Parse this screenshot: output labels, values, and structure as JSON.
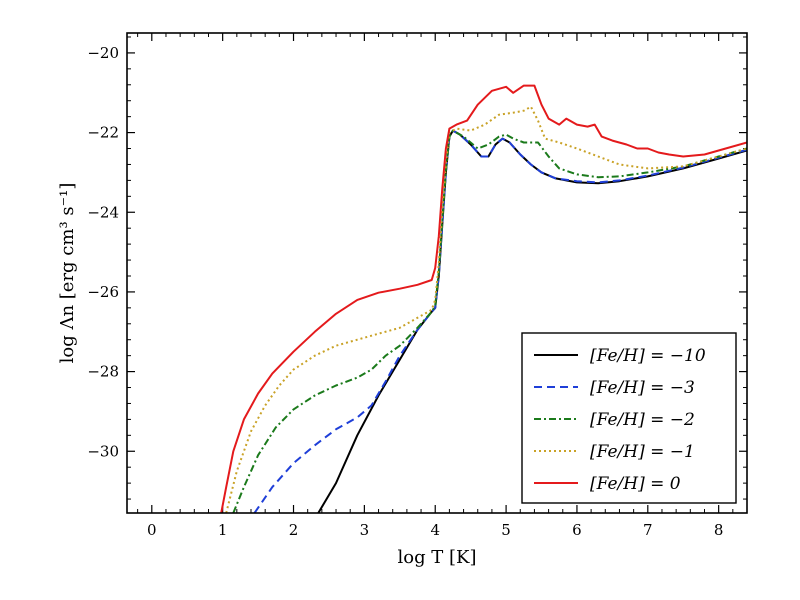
{
  "chart_data": {
    "type": "line",
    "title": "",
    "xlabel": "log T [K]",
    "ylabel": "log Λn [erg cm³ s⁻¹]",
    "xlim": [
      -0.35,
      8.4
    ],
    "ylim": [
      -31.55,
      -19.5
    ],
    "xticks": [
      0,
      1,
      2,
      3,
      4,
      5,
      6,
      7,
      8
    ],
    "yticks": [
      -30,
      -28,
      -26,
      -24,
      -22,
      -20
    ],
    "xtick_labels": [
      "0",
      "1",
      "2",
      "3",
      "4",
      "5",
      "6",
      "7",
      "8"
    ],
    "ytick_labels": [
      "−30",
      "−28",
      "−26",
      "−24",
      "−22",
      "−20"
    ],
    "legend_position": "lower-right",
    "series": [
      {
        "name": "[Fe/H] = −10",
        "color": "#000000",
        "dash": "solid",
        "points": [
          [
            2.35,
            -31.55
          ],
          [
            2.6,
            -30.8
          ],
          [
            2.9,
            -29.6
          ],
          [
            3.2,
            -28.6
          ],
          [
            3.5,
            -27.7
          ],
          [
            3.75,
            -26.95
          ],
          [
            3.95,
            -26.5
          ],
          [
            4.0,
            -26.4
          ],
          [
            4.05,
            -25.6
          ],
          [
            4.1,
            -24.3
          ],
          [
            4.15,
            -23.0
          ],
          [
            4.2,
            -22.1
          ],
          [
            4.25,
            -21.95
          ],
          [
            4.35,
            -22.05
          ],
          [
            4.5,
            -22.3
          ],
          [
            4.65,
            -22.6
          ],
          [
            4.75,
            -22.6
          ],
          [
            4.85,
            -22.3
          ],
          [
            4.95,
            -22.15
          ],
          [
            5.05,
            -22.25
          ],
          [
            5.2,
            -22.55
          ],
          [
            5.35,
            -22.8
          ],
          [
            5.5,
            -23.0
          ],
          [
            5.7,
            -23.15
          ],
          [
            6.0,
            -23.25
          ],
          [
            6.3,
            -23.27
          ],
          [
            6.6,
            -23.22
          ],
          [
            7.0,
            -23.1
          ],
          [
            7.5,
            -22.9
          ],
          [
            8.0,
            -22.65
          ],
          [
            8.4,
            -22.45
          ]
        ]
      },
      {
        "name": "[Fe/H] = −3",
        "color": "#1f3fd8",
        "dash": "dashed",
        "points": [
          [
            1.45,
            -31.55
          ],
          [
            1.7,
            -30.9
          ],
          [
            2.0,
            -30.3
          ],
          [
            2.3,
            -29.85
          ],
          [
            2.6,
            -29.45
          ],
          [
            2.9,
            -29.15
          ],
          [
            3.1,
            -28.85
          ],
          [
            3.3,
            -28.25
          ],
          [
            3.5,
            -27.6
          ],
          [
            3.75,
            -26.95
          ],
          [
            3.95,
            -26.5
          ],
          [
            4.0,
            -26.4
          ],
          [
            4.05,
            -25.6
          ],
          [
            4.1,
            -24.3
          ],
          [
            4.15,
            -23.0
          ],
          [
            4.2,
            -22.1
          ],
          [
            4.25,
            -21.95
          ],
          [
            4.35,
            -22.05
          ],
          [
            4.5,
            -22.3
          ],
          [
            4.65,
            -22.6
          ],
          [
            4.75,
            -22.6
          ],
          [
            4.85,
            -22.3
          ],
          [
            4.95,
            -22.15
          ],
          [
            5.05,
            -22.25
          ],
          [
            5.2,
            -22.55
          ],
          [
            5.35,
            -22.8
          ],
          [
            5.5,
            -23.0
          ],
          [
            5.7,
            -23.15
          ],
          [
            6.0,
            -23.22
          ],
          [
            6.3,
            -23.25
          ],
          [
            6.6,
            -23.2
          ],
          [
            7.0,
            -23.08
          ],
          [
            7.5,
            -22.88
          ],
          [
            8.0,
            -22.63
          ],
          [
            8.4,
            -22.43
          ]
        ]
      },
      {
        "name": "[Fe/H] = −2",
        "color": "#1b7a1b",
        "dash": "dashdot",
        "points": [
          [
            1.15,
            -31.55
          ],
          [
            1.3,
            -30.9
          ],
          [
            1.5,
            -30.1
          ],
          [
            1.75,
            -29.4
          ],
          [
            2.0,
            -28.95
          ],
          [
            2.3,
            -28.6
          ],
          [
            2.6,
            -28.35
          ],
          [
            2.9,
            -28.15
          ],
          [
            3.1,
            -27.95
          ],
          [
            3.3,
            -27.6
          ],
          [
            3.5,
            -27.35
          ],
          [
            3.75,
            -26.9
          ],
          [
            3.95,
            -26.5
          ],
          [
            4.0,
            -26.35
          ],
          [
            4.05,
            -25.5
          ],
          [
            4.1,
            -24.2
          ],
          [
            4.15,
            -22.95
          ],
          [
            4.2,
            -22.1
          ],
          [
            4.25,
            -21.95
          ],
          [
            4.4,
            -22.1
          ],
          [
            4.6,
            -22.4
          ],
          [
            4.75,
            -22.3
          ],
          [
            4.9,
            -22.1
          ],
          [
            5.0,
            -22.05
          ],
          [
            5.1,
            -22.15
          ],
          [
            5.25,
            -22.25
          ],
          [
            5.45,
            -22.25
          ],
          [
            5.6,
            -22.6
          ],
          [
            5.75,
            -22.9
          ],
          [
            6.0,
            -23.05
          ],
          [
            6.3,
            -23.12
          ],
          [
            6.6,
            -23.1
          ],
          [
            7.0,
            -23.0
          ],
          [
            7.5,
            -22.85
          ],
          [
            8.0,
            -22.6
          ],
          [
            8.4,
            -22.4
          ]
        ]
      },
      {
        "name": "[Fe/H] = −1",
        "color": "#c9a227",
        "dash": "dotted",
        "points": [
          [
            1.05,
            -31.55
          ],
          [
            1.2,
            -30.5
          ],
          [
            1.4,
            -29.5
          ],
          [
            1.6,
            -28.85
          ],
          [
            1.8,
            -28.35
          ],
          [
            2.0,
            -27.95
          ],
          [
            2.3,
            -27.6
          ],
          [
            2.6,
            -27.35
          ],
          [
            2.9,
            -27.2
          ],
          [
            3.2,
            -27.05
          ],
          [
            3.5,
            -26.9
          ],
          [
            3.75,
            -26.65
          ],
          [
            3.95,
            -26.45
          ],
          [
            4.0,
            -26.2
          ],
          [
            4.05,
            -25.3
          ],
          [
            4.1,
            -24.0
          ],
          [
            4.15,
            -22.8
          ],
          [
            4.2,
            -22.0
          ],
          [
            4.3,
            -21.9
          ],
          [
            4.5,
            -21.95
          ],
          [
            4.7,
            -21.8
          ],
          [
            4.9,
            -21.55
          ],
          [
            5.1,
            -21.5
          ],
          [
            5.25,
            -21.45
          ],
          [
            5.35,
            -21.35
          ],
          [
            5.45,
            -21.7
          ],
          [
            5.55,
            -22.15
          ],
          [
            5.75,
            -22.25
          ],
          [
            6.0,
            -22.4
          ],
          [
            6.3,
            -22.6
          ],
          [
            6.6,
            -22.8
          ],
          [
            7.0,
            -22.9
          ],
          [
            7.5,
            -22.85
          ],
          [
            8.0,
            -22.6
          ],
          [
            8.4,
            -22.4
          ]
        ]
      },
      {
        "name": "[Fe/H] = 0",
        "color": "#e41a1c",
        "dash": "solid",
        "points": [
          [
            0.98,
            -31.55
          ],
          [
            1.05,
            -30.9
          ],
          [
            1.15,
            -30.0
          ],
          [
            1.3,
            -29.2
          ],
          [
            1.5,
            -28.55
          ],
          [
            1.7,
            -28.05
          ],
          [
            2.0,
            -27.5
          ],
          [
            2.3,
            -27.0
          ],
          [
            2.6,
            -26.55
          ],
          [
            2.9,
            -26.2
          ],
          [
            3.2,
            -26.02
          ],
          [
            3.5,
            -25.92
          ],
          [
            3.75,
            -25.82
          ],
          [
            3.95,
            -25.7
          ],
          [
            4.0,
            -25.4
          ],
          [
            4.05,
            -24.6
          ],
          [
            4.1,
            -23.4
          ],
          [
            4.15,
            -22.4
          ],
          [
            4.2,
            -21.9
          ],
          [
            4.3,
            -21.8
          ],
          [
            4.45,
            -21.7
          ],
          [
            4.6,
            -21.3
          ],
          [
            4.8,
            -20.95
          ],
          [
            5.0,
            -20.85
          ],
          [
            5.1,
            -21.0
          ],
          [
            5.25,
            -20.82
          ],
          [
            5.4,
            -20.82
          ],
          [
            5.5,
            -21.3
          ],
          [
            5.6,
            -21.65
          ],
          [
            5.75,
            -21.8
          ],
          [
            5.85,
            -21.65
          ],
          [
            6.0,
            -21.8
          ],
          [
            6.15,
            -21.85
          ],
          [
            6.25,
            -21.8
          ],
          [
            6.35,
            -22.1
          ],
          [
            6.5,
            -22.2
          ],
          [
            6.7,
            -22.3
          ],
          [
            6.85,
            -22.4
          ],
          [
            7.0,
            -22.4
          ],
          [
            7.15,
            -22.5
          ],
          [
            7.3,
            -22.55
          ],
          [
            7.5,
            -22.6
          ],
          [
            7.8,
            -22.55
          ],
          [
            8.1,
            -22.4
          ],
          [
            8.4,
            -22.25
          ]
        ]
      }
    ]
  }
}
